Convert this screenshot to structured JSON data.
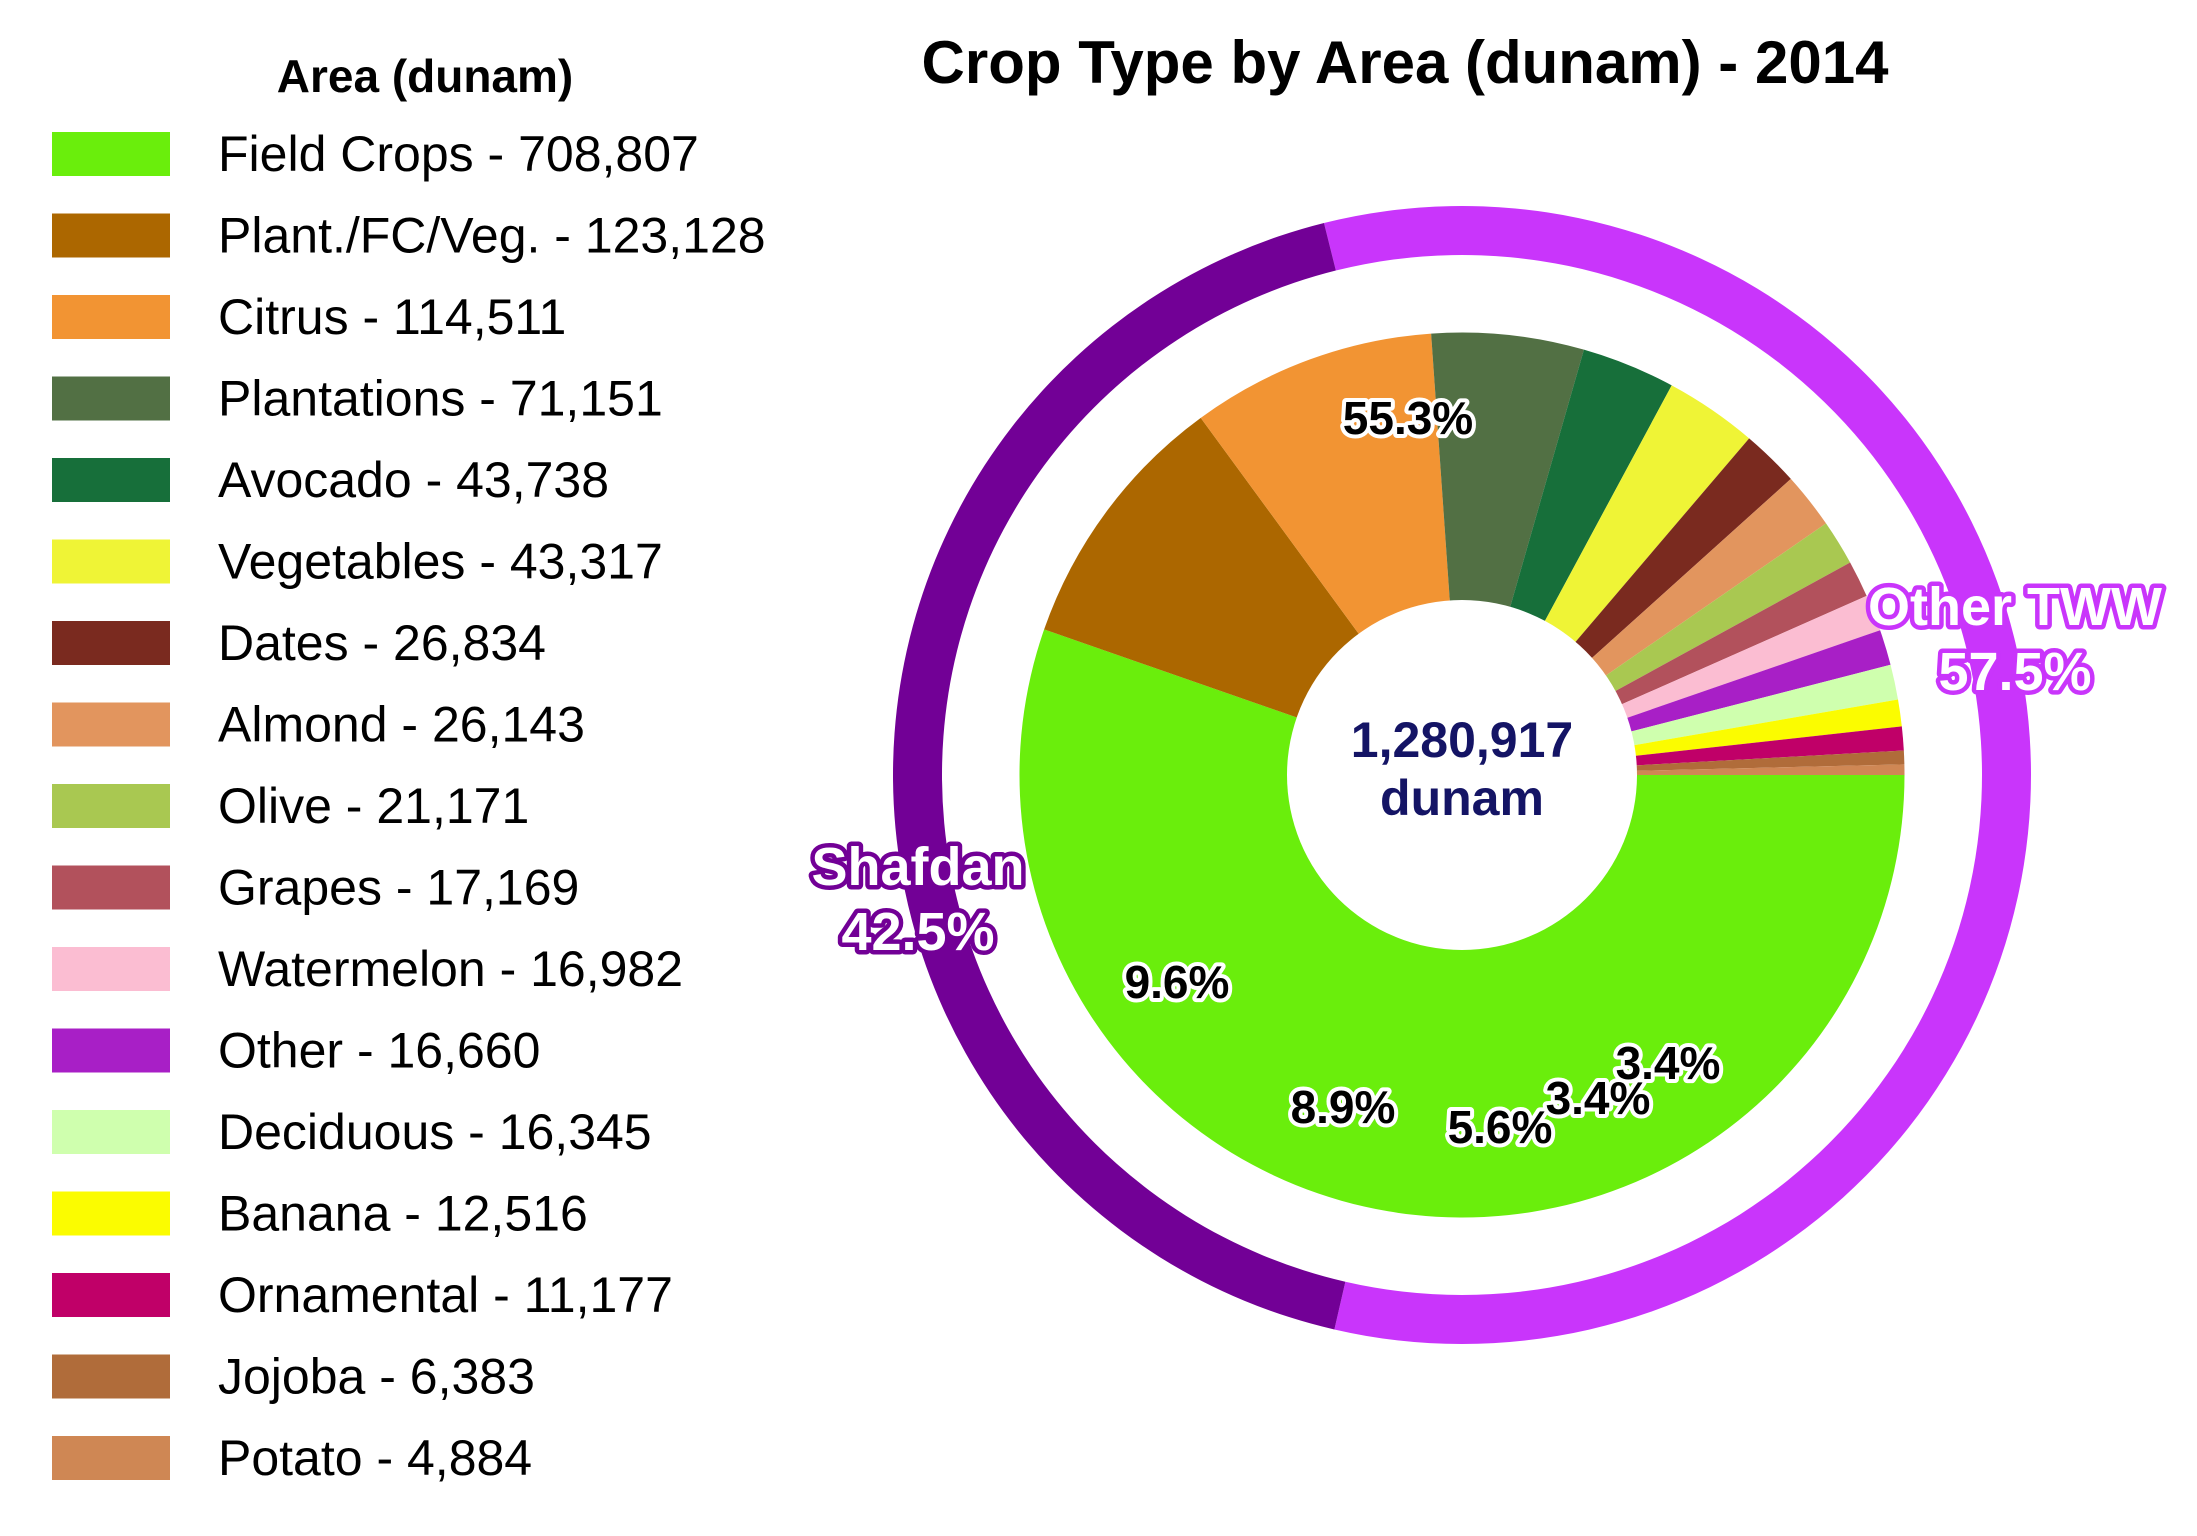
{
  "chart_data": {
    "type": "pie",
    "subtype": "nested-donut",
    "title": "Crop Type by Area (dunam) - 2014",
    "legend_title": "Area (dunam)",
    "center_label": [
      "1,280,917",
      "dunam"
    ],
    "total": 1280917,
    "unit": "dunam",
    "inner_series": [
      {
        "name": "Field Crops",
        "value": 708807,
        "legend": "Field Crops - 708,807",
        "color": "#6aee0c",
        "pct_label": "55.3%"
      },
      {
        "name": "Plant./FC/Veg.",
        "value": 123128,
        "legend": "Plant./FC/Veg. - 123,128",
        "color": "#ac6700",
        "pct_label": "9.6%"
      },
      {
        "name": "Citrus",
        "value": 114511,
        "legend": "Citrus - 114,511",
        "color": "#f29433",
        "pct_label": "8.9%"
      },
      {
        "name": "Plantations",
        "value": 71151,
        "legend": "Plantations - 71,151",
        "color": "#527044",
        "pct_label": "5.6%"
      },
      {
        "name": "Avocado",
        "value": 43738,
        "legend": "Avocado - 43,738",
        "color": "#176f3a",
        "pct_label": "3.4%"
      },
      {
        "name": "Vegetables",
        "value": 43317,
        "legend": "Vegetables - 43,317",
        "color": "#eff436",
        "pct_label": "3.4%"
      },
      {
        "name": "Dates",
        "value": 26834,
        "legend": "Dates - 26,834",
        "color": "#7a2a1f",
        "pct_label": ""
      },
      {
        "name": "Almond",
        "value": 26143,
        "legend": "Almond - 26,143",
        "color": "#e2955e",
        "pct_label": ""
      },
      {
        "name": "Olive",
        "value": 21171,
        "legend": "Olive - 21,171",
        "color": "#a9c851",
        "pct_label": ""
      },
      {
        "name": "Grapes",
        "value": 17169,
        "legend": "Grapes - 17,169",
        "color": "#b2515c",
        "pct_label": ""
      },
      {
        "name": "Watermelon",
        "value": 16982,
        "legend": "Watermelon - 16,982",
        "color": "#fbbdd2",
        "pct_label": ""
      },
      {
        "name": "Other",
        "value": 16660,
        "legend": "Other - 16,660",
        "color": "#a81fc6",
        "pct_label": ""
      },
      {
        "name": "Deciduous",
        "value": 16345,
        "legend": "Deciduous - 16,345",
        "color": "#cfffae",
        "pct_label": ""
      },
      {
        "name": "Banana",
        "value": 12516,
        "legend": "Banana - 12,516",
        "color": "#fbfc00",
        "pct_label": ""
      },
      {
        "name": "Ornamental",
        "value": 11177,
        "legend": "Ornamental - 11,177",
        "color": "#c00068",
        "pct_label": ""
      },
      {
        "name": "Jojoba",
        "value": 6383,
        "legend": "Jojoba - 6,383",
        "color": "#b06c3a",
        "pct_label": ""
      },
      {
        "name": "Potato",
        "value": 4884,
        "legend": "Potato - 4,884",
        "color": "#cf8754",
        "pct_label": ""
      }
    ],
    "outer_series": [
      {
        "name": "Other TWW",
        "percent": 57.5,
        "label": [
          "Other TWW",
          "57.5%"
        ],
        "color": "#c935fb"
      },
      {
        "name": "Shafdan",
        "percent": 42.5,
        "label": [
          "Shafdan",
          "42.5%"
        ],
        "color": "#720096"
      }
    ]
  }
}
